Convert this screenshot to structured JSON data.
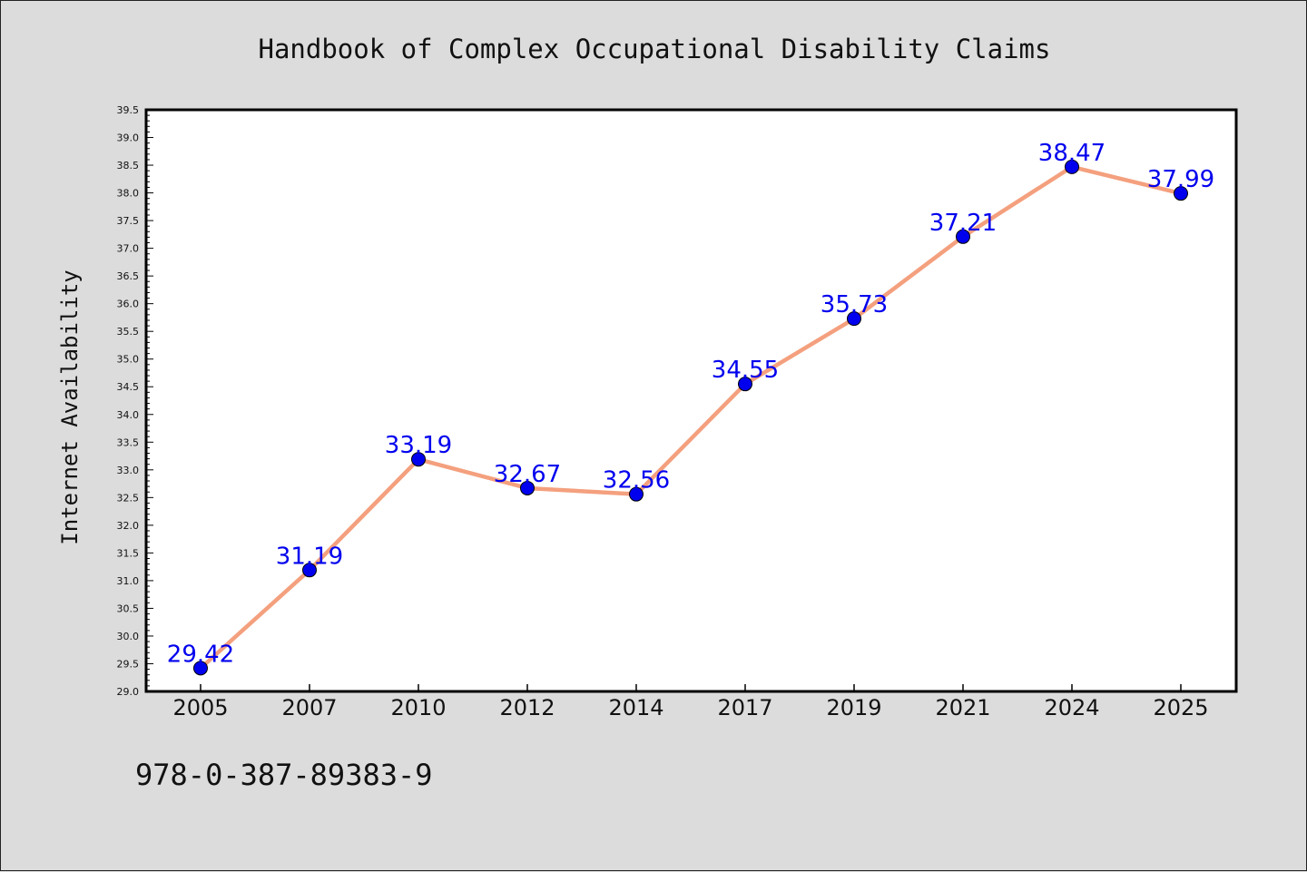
{
  "chart_data": {
    "type": "line",
    "title": "Handbook of Complex Occupational Disability Claims",
    "xlabel": "",
    "ylabel": "Internet Availability",
    "categories": [
      "2005",
      "2007",
      "2010",
      "2012",
      "2014",
      "2017",
      "2019",
      "2021",
      "2024",
      "2025"
    ],
    "series": [
      {
        "values": [
          29.42,
          31.19,
          33.19,
          32.67,
          32.56,
          34.55,
          35.73,
          37.21,
          38.47,
          37.99
        ]
      }
    ],
    "data_labels": [
      "29.42",
      "31.19",
      "33.19",
      "32.67",
      "32.56",
      "34.55",
      "35.73",
      "37.21",
      "38.47",
      "37.99"
    ],
    "ylim": [
      29.0,
      39.5
    ],
    "yticks": [
      "29.0",
      "29.5",
      "30.0",
      "30.5",
      "31.0",
      "31.5",
      "32.0",
      "32.5",
      "33.0",
      "33.5",
      "34.0",
      "34.5",
      "35.0",
      "35.5",
      "36.0",
      "36.5",
      "37.0",
      "37.5",
      "38.0",
      "38.5",
      "39.0",
      "39.5"
    ],
    "grid": false,
    "legend": "none",
    "colors": {
      "line": "#f4a07e",
      "marker": "#0000ee",
      "label": "#0000ee",
      "background": "#dcdcdc",
      "plot_background": "#ffffff"
    }
  },
  "footer": {
    "isbn": "978-0-387-89383-9"
  }
}
